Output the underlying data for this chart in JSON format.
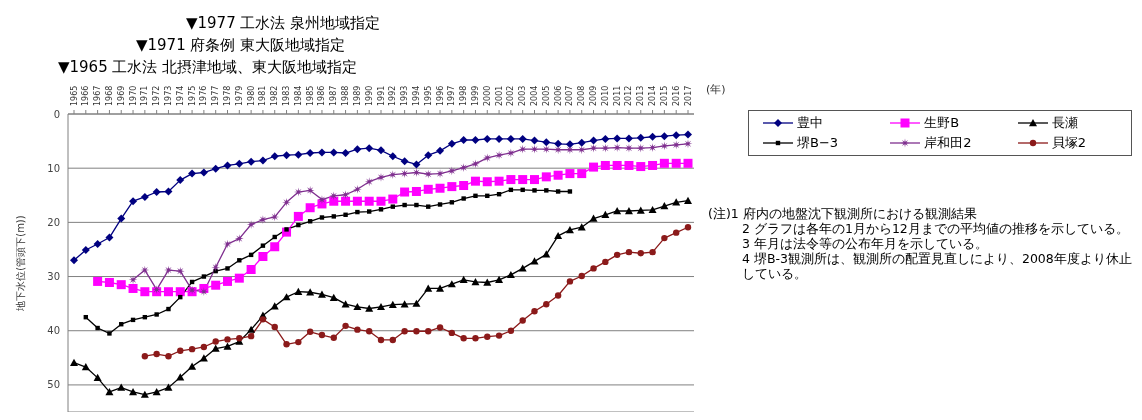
{
  "chart_data": {
    "type": "line",
    "xlabel": "(年)",
    "ylabel": "地下水位(管頭下(m))",
    "annotations": [
      "▼1977 工水法 泉州地域指定",
      "▼1971 府条例 東大阪地域指定",
      "▼1965 工水法 北摂津地域、東大阪地域指定",
      "(注)1 府内の地盤沈下観測所における観測結果",
      "2 グラフは各年の1月から12月までの平均値の推移を示している。",
      "3 年月は法令等の公布年月を示している。",
      "4 堺B-3観測所は、観測所の配置見直しにより、2008年度より休止している。"
    ],
    "categories": [
      "1965",
      "1966",
      "1967",
      "1968",
      "1969",
      "1970",
      "1971",
      "1972",
      "1973",
      "1974",
      "1975",
      "1976",
      "1977",
      "1978",
      "1979",
      "1980",
      "1981",
      "1982",
      "1983",
      "1984",
      "1985",
      "1986",
      "1987",
      "1988",
      "1989",
      "1990",
      "1991",
      "1992",
      "1993",
      "1994",
      "1995",
      "1996",
      "1997",
      "1998",
      "1999",
      "2000",
      "2001",
      "2002",
      "2003",
      "2004",
      "2005",
      "2006",
      "2007",
      "2008",
      "2009",
      "2010",
      "2011",
      "2012",
      "2013",
      "2014",
      "2015",
      "2016",
      "2017"
    ],
    "ylim": [
      55,
      0
    ],
    "yticks": [
      0,
      10,
      20,
      30,
      40,
      50
    ],
    "grid": "y",
    "legend": "right",
    "series": [
      {
        "name": "豊中",
        "color": "#000080",
        "marker": "diamond",
        "values": [
          27.0,
          25.1,
          24.0,
          22.8,
          19.3,
          16.1,
          15.3,
          14.4,
          14.3,
          12.2,
          11.0,
          10.8,
          10.1,
          9.5,
          9.2,
          8.8,
          8.6,
          7.8,
          7.6,
          7.5,
          7.2,
          7.1,
          7.1,
          7.2,
          6.5,
          6.3,
          6.7,
          7.8,
          8.7,
          9.3,
          7.6,
          6.8,
          5.5,
          4.8,
          4.8,
          4.6,
          4.6,
          4.6,
          4.6,
          4.9,
          5.2,
          5.5,
          5.6,
          5.3,
          4.9,
          4.6,
          4.5,
          4.5,
          4.4,
          4.2,
          4.1,
          3.9,
          3.8
        ]
      },
      {
        "name": "生野B",
        "color": "#ff00ff",
        "marker": "square",
        "values": [
          null,
          null,
          30.9,
          31.1,
          31.5,
          32.2,
          32.8,
          32.8,
          32.8,
          32.8,
          32.8,
          32.2,
          31.6,
          30.9,
          30.3,
          28.7,
          26.3,
          24.5,
          21.8,
          18.9,
          17.3,
          16.6,
          16.1,
          16.1,
          16.1,
          16.1,
          16.1,
          15.7,
          14.4,
          14.3,
          13.9,
          13.7,
          13.4,
          13.2,
          12.4,
          12.5,
          12.4,
          12.1,
          12.1,
          12.1,
          11.6,
          11.3,
          11.0,
          11.0,
          9.8,
          9.5,
          9.5,
          9.5,
          9.7,
          9.5,
          9.1,
          9.1,
          9.1
        ]
      },
      {
        "name": "長瀬",
        "color": "#000000",
        "marker": "triangle",
        "values": [
          45.9,
          46.7,
          48.7,
          51.3,
          50.5,
          51.3,
          51.8,
          51.3,
          50.5,
          48.6,
          46.6,
          45.1,
          43.3,
          42.9,
          42.0,
          39.8,
          37.2,
          35.5,
          33.8,
          32.8,
          32.9,
          33.3,
          33.9,
          35.1,
          35.6,
          35.9,
          35.6,
          35.2,
          35.1,
          35.0,
          32.2,
          32.2,
          31.4,
          30.6,
          31.0,
          31.1,
          30.6,
          29.7,
          28.5,
          27.2,
          25.9,
          22.5,
          21.4,
          20.9,
          19.3,
          18.6,
          17.9,
          17.9,
          17.8,
          17.7,
          17.0,
          16.3,
          16.0
        ]
      },
      {
        "name": "堺B−3",
        "color": "#000000",
        "marker": "square",
        "values": [
          null,
          37.5,
          39.5,
          40.5,
          38.8,
          38.0,
          37.5,
          37.0,
          36.0,
          33.8,
          31.0,
          30.0,
          29.0,
          28.5,
          27.0,
          26.0,
          24.3,
          22.7,
          21.3,
          20.5,
          19.8,
          19.1,
          18.9,
          18.6,
          18.1,
          18.0,
          17.6,
          17.1,
          16.8,
          16.8,
          17.1,
          16.7,
          16.3,
          15.6,
          15.1,
          15.1,
          14.8,
          14.0,
          14.0,
          14.1,
          14.1,
          14.3,
          14.3,
          null,
          null,
          null,
          null,
          null,
          null,
          null,
          null,
          null,
          null
        ]
      },
      {
        "name": "岸和田2",
        "color": "#7f2f8f",
        "marker": "star",
        "values": [
          null,
          null,
          null,
          null,
          null,
          30.6,
          28.8,
          32.4,
          28.8,
          29.0,
          32.5,
          32.8,
          28.3,
          24.0,
          23.0,
          20.4,
          19.5,
          19.0,
          16.3,
          14.4,
          14.1,
          15.8,
          15.1,
          14.9,
          13.9,
          12.5,
          11.7,
          11.2,
          11.0,
          10.8,
          11.1,
          11.0,
          10.5,
          9.9,
          9.2,
          8.1,
          7.6,
          7.2,
          6.5,
          6.5,
          6.5,
          6.6,
          6.6,
          6.6,
          6.3,
          6.3,
          6.2,
          6.3,
          6.3,
          6.2,
          5.9,
          5.7,
          5.5
        ]
      },
      {
        "name": "貝塚2",
        "color": "#8b1a1a",
        "marker": "circle",
        "values": [
          null,
          null,
          null,
          null,
          null,
          null,
          44.7,
          44.3,
          44.7,
          43.7,
          43.4,
          43.0,
          42.0,
          41.6,
          41.4,
          41.0,
          37.9,
          39.3,
          42.5,
          42.1,
          40.2,
          40.8,
          41.3,
          39.1,
          39.8,
          40.1,
          41.7,
          41.7,
          40.1,
          40.1,
          40.1,
          39.4,
          40.4,
          41.4,
          41.4,
          41.1,
          40.9,
          40.0,
          38.1,
          36.4,
          35.1,
          33.5,
          30.9,
          29.9,
          28.5,
          27.3,
          26.0,
          25.5,
          25.7,
          25.5,
          22.9,
          21.9,
          20.9
        ]
      }
    ]
  }
}
